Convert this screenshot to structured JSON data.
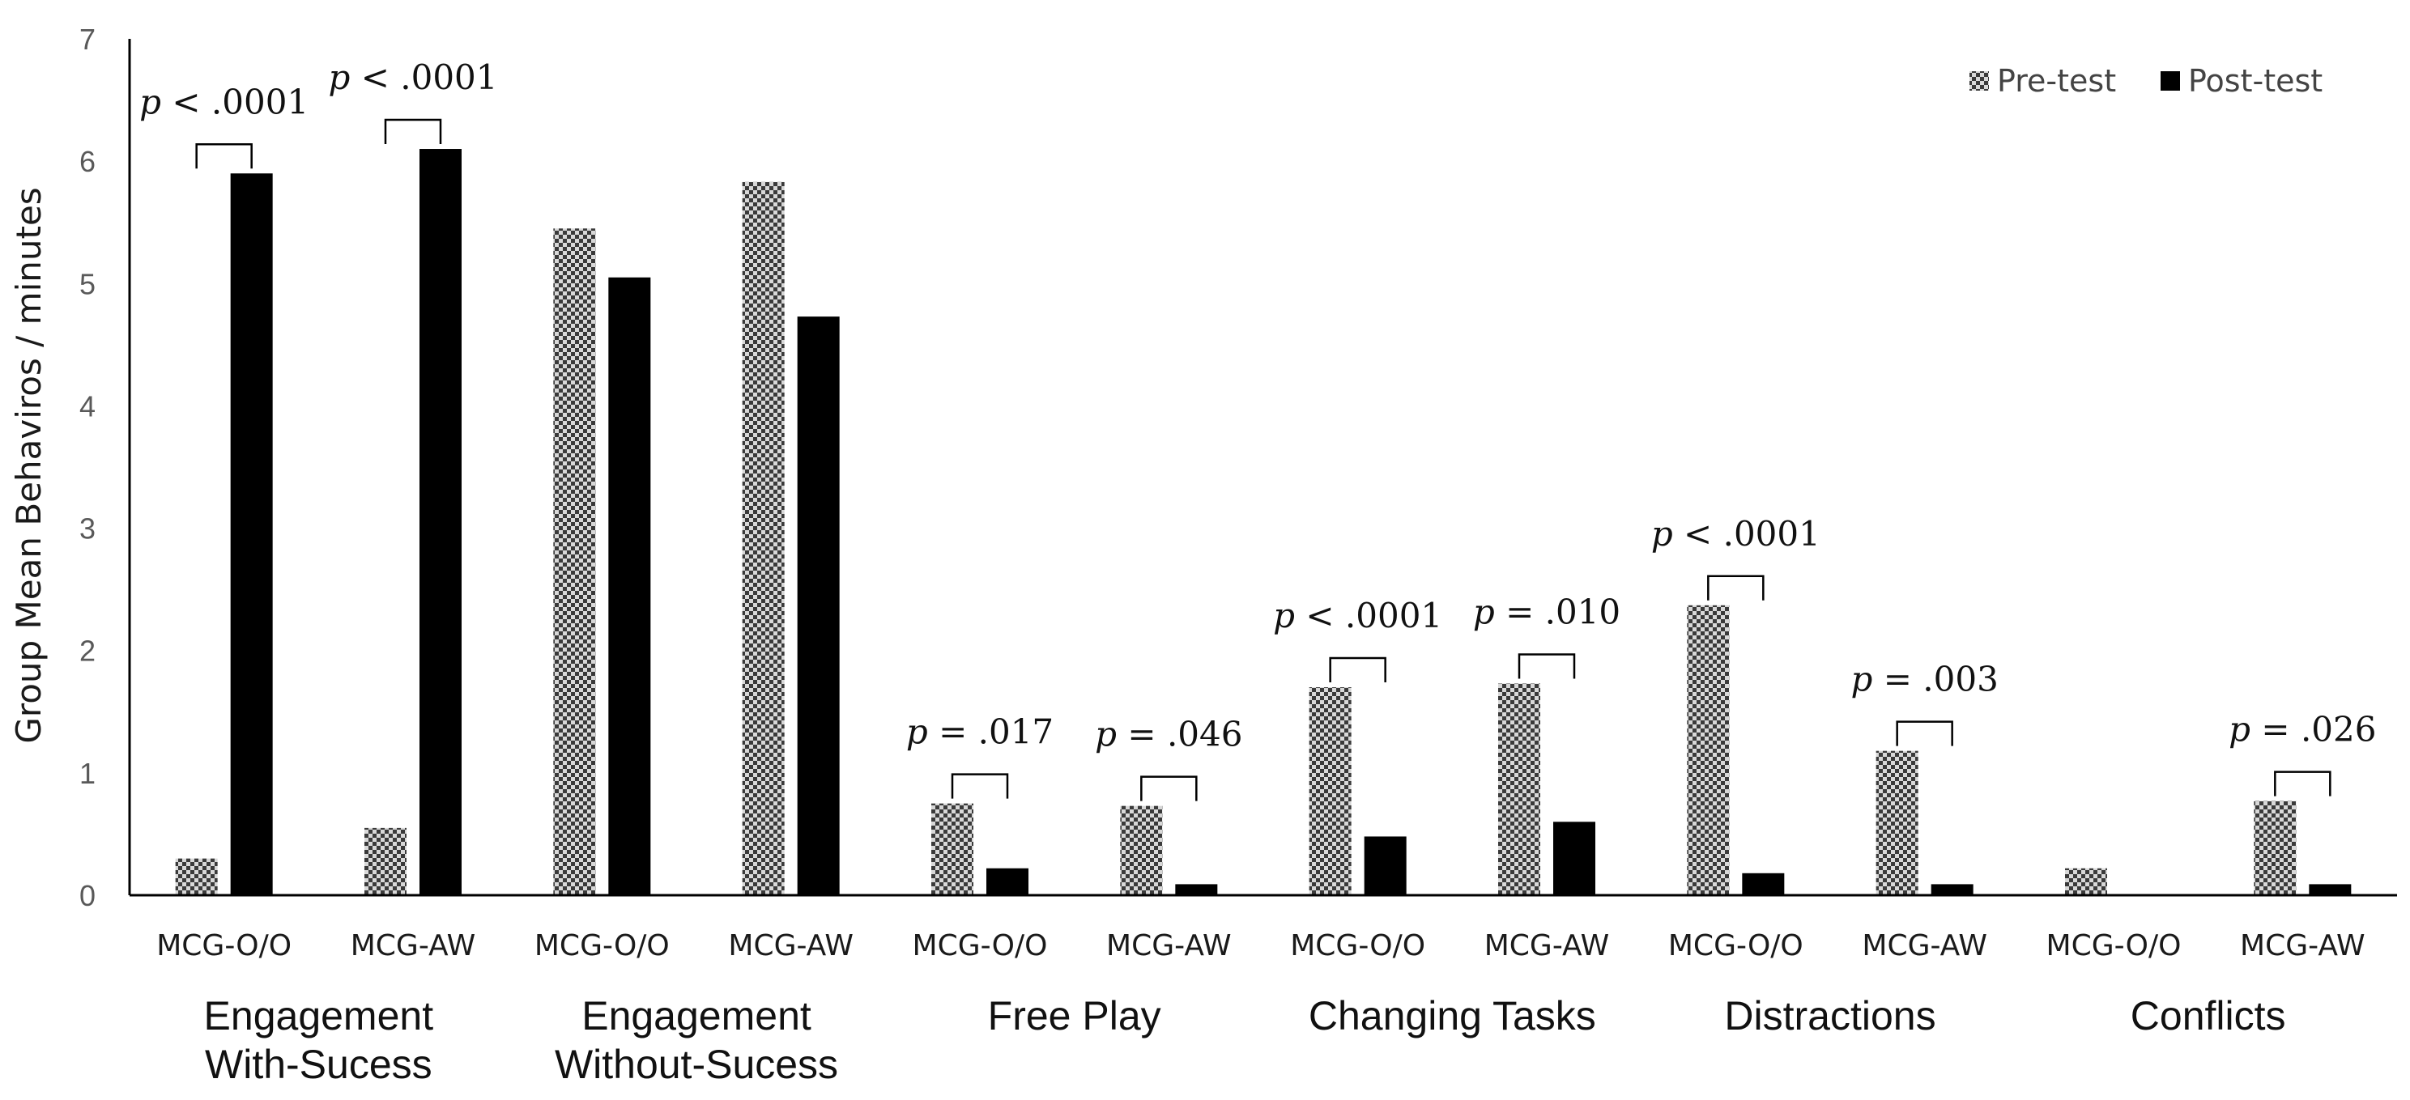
{
  "chart_data": {
    "type": "bar",
    "ylabel": "Group Mean  Behaviros / minutes",
    "xlabel": "",
    "ylim": [
      0,
      7
    ],
    "yticks": [
      "0",
      "1",
      "2",
      "3",
      "4",
      "5",
      "6",
      "7"
    ],
    "legend_position": "top-right",
    "grid": false,
    "categories": [
      "MCG-O/O",
      "MCG-AW",
      "MCG-O/O",
      "MCG-AW",
      "MCG-O/O",
      "MCG-AW",
      "MCG-O/O",
      "MCG-AW",
      "MCG-O/O",
      "MCG-AW",
      "MCG-O/O",
      "MCG-AW"
    ],
    "groups": [
      {
        "label": [
          "Engagement",
          "With-Sucess"
        ]
      },
      {
        "label": [
          "Engagement",
          "Without-Sucess"
        ]
      },
      {
        "label": [
          "Free Play"
        ]
      },
      {
        "label": [
          "Changing Tasks"
        ]
      },
      {
        "label": [
          "Distractions"
        ]
      },
      {
        "label": [
          "Conflicts"
        ]
      }
    ],
    "series": [
      {
        "name": "Pre-test",
        "pattern": "checkered",
        "values": [
          0.3,
          0.55,
          5.45,
          5.83,
          0.75,
          0.73,
          1.7,
          1.73,
          2.37,
          1.18,
          0.22,
          0.77
        ]
      },
      {
        "name": "Post-test",
        "pattern": "solid",
        "values": [
          5.9,
          6.1,
          5.05,
          4.73,
          0.22,
          0.09,
          0.48,
          0.6,
          0.18,
          0.09,
          0.0,
          0.09
        ]
      }
    ],
    "annotations": [
      {
        "bar_index": 0,
        "p": "p",
        "text": " < .0001"
      },
      {
        "bar_index": 1,
        "p": "p",
        "text": " < .0001"
      },
      {
        "bar_index": 4,
        "p": "p",
        "text": " = .017"
      },
      {
        "bar_index": 5,
        "p": "p",
        "text": " = .046"
      },
      {
        "bar_index": 6,
        "p": "p",
        "text": " < .0001"
      },
      {
        "bar_index": 7,
        "p": "p",
        "text": " = .010"
      },
      {
        "bar_index": 8,
        "p": "p",
        "text": " < .0001"
      },
      {
        "bar_index": 9,
        "p": "p",
        "text": " = .003"
      },
      {
        "bar_index": 11,
        "p": "p",
        "text": " = .026"
      }
    ],
    "colors": {
      "post": "#000000",
      "pre_fg": "#3a3a3a",
      "pre_bg": "#d8d8d8",
      "axis": "#000000"
    }
  }
}
